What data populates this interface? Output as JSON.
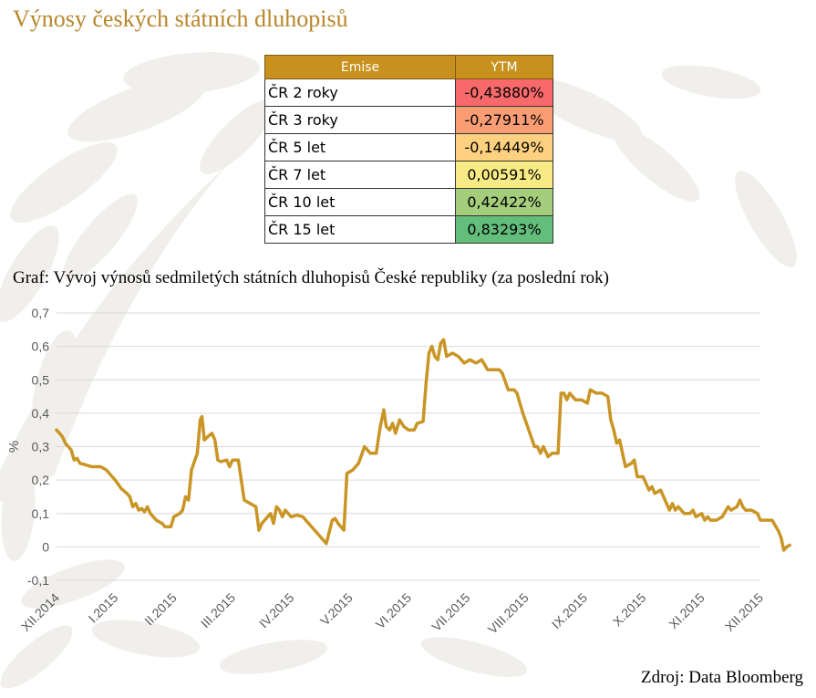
{
  "header": {
    "title": "Výnosy českých státních dluhopisů"
  },
  "table": {
    "columns": [
      "Emise",
      "YTM"
    ],
    "rows": [
      {
        "emise": "ČR 2 roky",
        "ytm": "-0,43880%",
        "color": "#f8696b"
      },
      {
        "emise": "ČR 3 roky",
        "ytm": "-0,27911%",
        "color": "#fa9d75"
      },
      {
        "emise": "ČR 5 let",
        "ytm": "-0,14449%",
        "color": "#fdd17f"
      },
      {
        "emise": "ČR 7 let",
        "ytm": "0,00591%",
        "color": "#f8eb86"
      },
      {
        "emise": "ČR 10 let",
        "ytm": "0,42422%",
        "color": "#a4cd7c"
      },
      {
        "emise": "ČR 15 let",
        "ytm": "0,83293%",
        "color": "#63be7b"
      }
    ]
  },
  "graph_caption": "Graf: Vývoj výnosů sedmiletých státních dluhopisů České republiky (za poslední rok)",
  "source": "Zdroj: Data Bloomberg",
  "chart_data": {
    "type": "line",
    "title": "",
    "xlabel": "",
    "ylabel": "%",
    "ylim": [
      -0.1,
      0.7
    ],
    "yticks": [
      "-0,1",
      "0",
      "0,1",
      "0,2",
      "0,3",
      "0,4",
      "0,5",
      "0,6",
      "0,7"
    ],
    "ytick_values": [
      -0.1,
      0,
      0.1,
      0.2,
      0.3,
      0.4,
      0.5,
      0.6,
      0.7
    ],
    "categories": [
      "XII.2014",
      "I.2015",
      "II.2015",
      "III.2015",
      "IV.2015",
      "V.2015",
      "VI.2015",
      "VII.2015",
      "VIII.2015",
      "IX.2015",
      "X.2015",
      "XI.2015",
      "XII.2015"
    ],
    "grid": true,
    "line_color": "#c99525",
    "series": [
      {
        "values": [
          [
            0.0,
            0.35
          ],
          [
            0.05,
            0.34
          ],
          [
            0.1,
            0.33
          ],
          [
            0.15,
            0.31
          ],
          [
            0.2,
            0.3
          ],
          [
            0.25,
            0.29
          ],
          [
            0.3,
            0.26
          ],
          [
            0.35,
            0.265
          ],
          [
            0.4,
            0.25
          ],
          [
            0.5,
            0.245
          ],
          [
            0.6,
            0.24
          ],
          [
            0.75,
            0.24
          ],
          [
            0.85,
            0.23
          ],
          [
            0.95,
            0.21
          ],
          [
            1.0,
            0.2
          ],
          [
            1.1,
            0.175
          ],
          [
            1.2,
            0.16
          ],
          [
            1.25,
            0.15
          ],
          [
            1.3,
            0.12
          ],
          [
            1.35,
            0.13
          ],
          [
            1.4,
            0.11
          ],
          [
            1.45,
            0.115
          ],
          [
            1.5,
            0.105
          ],
          [
            1.55,
            0.12
          ],
          [
            1.6,
            0.1
          ],
          [
            1.7,
            0.08
          ],
          [
            1.8,
            0.07
          ],
          [
            1.85,
            0.06
          ],
          [
            1.95,
            0.06
          ],
          [
            2.0,
            0.09
          ],
          [
            2.1,
            0.1
          ],
          [
            2.15,
            0.11
          ],
          [
            2.2,
            0.15
          ],
          [
            2.25,
            0.14
          ],
          [
            2.3,
            0.23
          ],
          [
            2.4,
            0.28
          ],
          [
            2.45,
            0.38
          ],
          [
            2.48,
            0.39
          ],
          [
            2.52,
            0.32
          ],
          [
            2.58,
            0.33
          ],
          [
            2.65,
            0.34
          ],
          [
            2.7,
            0.32
          ],
          [
            2.75,
            0.26
          ],
          [
            2.8,
            0.255
          ],
          [
            2.9,
            0.26
          ],
          [
            2.95,
            0.24
          ],
          [
            3.0,
            0.26
          ],
          [
            3.1,
            0.26
          ],
          [
            3.15,
            0.2
          ],
          [
            3.2,
            0.14
          ],
          [
            3.3,
            0.13
          ],
          [
            3.4,
            0.12
          ],
          [
            3.45,
            0.05
          ],
          [
            3.5,
            0.07
          ],
          [
            3.6,
            0.09
          ],
          [
            3.65,
            0.1
          ],
          [
            3.7,
            0.07
          ],
          [
            3.75,
            0.12
          ],
          [
            3.8,
            0.11
          ],
          [
            3.85,
            0.09
          ],
          [
            3.9,
            0.11
          ],
          [
            4.0,
            0.09
          ],
          [
            4.1,
            0.095
          ],
          [
            4.2,
            0.09
          ],
          [
            4.25,
            0.08
          ],
          [
            4.35,
            0.06
          ],
          [
            4.45,
            0.04
          ],
          [
            4.55,
            0.02
          ],
          [
            4.6,
            0.01
          ],
          [
            4.7,
            0.08
          ],
          [
            4.75,
            0.085
          ],
          [
            4.8,
            0.07
          ],
          [
            4.9,
            0.05
          ],
          [
            4.95,
            0.22
          ],
          [
            5.05,
            0.23
          ],
          [
            5.15,
            0.25
          ],
          [
            5.25,
            0.3
          ],
          [
            5.35,
            0.28
          ],
          [
            5.45,
            0.28
          ],
          [
            5.52,
            0.36
          ],
          [
            5.58,
            0.41
          ],
          [
            5.62,
            0.36
          ],
          [
            5.68,
            0.35
          ],
          [
            5.73,
            0.37
          ],
          [
            5.78,
            0.34
          ],
          [
            5.85,
            0.38
          ],
          [
            5.92,
            0.36
          ],
          [
            6.0,
            0.35
          ],
          [
            6.1,
            0.35
          ],
          [
            6.15,
            0.37
          ],
          [
            6.25,
            0.375
          ],
          [
            6.3,
            0.49
          ],
          [
            6.35,
            0.58
          ],
          [
            6.4,
            0.6
          ],
          [
            6.45,
            0.57
          ],
          [
            6.5,
            0.56
          ],
          [
            6.55,
            0.61
          ],
          [
            6.6,
            0.62
          ],
          [
            6.65,
            0.57
          ],
          [
            6.75,
            0.58
          ],
          [
            6.85,
            0.57
          ],
          [
            6.95,
            0.55
          ],
          [
            7.05,
            0.56
          ],
          [
            7.15,
            0.55
          ],
          [
            7.25,
            0.56
          ],
          [
            7.35,
            0.53
          ],
          [
            7.45,
            0.53
          ],
          [
            7.55,
            0.53
          ],
          [
            7.6,
            0.52
          ],
          [
            7.7,
            0.47
          ],
          [
            7.8,
            0.47
          ],
          [
            7.85,
            0.46
          ],
          [
            7.95,
            0.4
          ],
          [
            8.05,
            0.35
          ],
          [
            8.15,
            0.3
          ],
          [
            8.2,
            0.3
          ],
          [
            8.25,
            0.28
          ],
          [
            8.3,
            0.3
          ],
          [
            8.38,
            0.27
          ],
          [
            8.45,
            0.28
          ],
          [
            8.55,
            0.28
          ],
          [
            8.6,
            0.46
          ],
          [
            8.65,
            0.46
          ],
          [
            8.7,
            0.44
          ],
          [
            8.75,
            0.46
          ],
          [
            8.8,
            0.45
          ],
          [
            8.85,
            0.44
          ],
          [
            8.95,
            0.44
          ],
          [
            9.05,
            0.43
          ],
          [
            9.1,
            0.47
          ],
          [
            9.2,
            0.46
          ],
          [
            9.3,
            0.46
          ],
          [
            9.4,
            0.45
          ],
          [
            9.45,
            0.38
          ],
          [
            9.5,
            0.35
          ],
          [
            9.55,
            0.31
          ],
          [
            9.6,
            0.32
          ],
          [
            9.7,
            0.24
          ],
          [
            9.8,
            0.25
          ],
          [
            9.85,
            0.26
          ],
          [
            9.9,
            0.21
          ],
          [
            10.0,
            0.21
          ],
          [
            10.1,
            0.17
          ],
          [
            10.15,
            0.18
          ],
          [
            10.2,
            0.16
          ],
          [
            10.3,
            0.17
          ],
          [
            10.35,
            0.15
          ],
          [
            10.45,
            0.11
          ],
          [
            10.5,
            0.13
          ],
          [
            10.55,
            0.11
          ],
          [
            10.6,
            0.12
          ],
          [
            10.7,
            0.1
          ],
          [
            10.8,
            0.1
          ],
          [
            10.85,
            0.11
          ],
          [
            10.9,
            0.09
          ],
          [
            11.0,
            0.1
          ],
          [
            11.05,
            0.08
          ],
          [
            11.1,
            0.09
          ],
          [
            11.15,
            0.08
          ],
          [
            11.25,
            0.08
          ],
          [
            11.35,
            0.09
          ],
          [
            11.45,
            0.12
          ],
          [
            11.5,
            0.11
          ],
          [
            11.6,
            0.12
          ],
          [
            11.65,
            0.14
          ],
          [
            11.7,
            0.12
          ],
          [
            11.75,
            0.11
          ],
          [
            11.85,
            0.11
          ],
          [
            11.95,
            0.1
          ],
          [
            12.0,
            0.08
          ],
          [
            12.1,
            0.08
          ],
          [
            12.2,
            0.08
          ],
          [
            12.3,
            0.05
          ],
          [
            12.35,
            0.03
          ],
          [
            12.4,
            -0.01
          ],
          [
            12.45,
            0.0
          ],
          [
            12.5,
            0.005
          ]
        ]
      }
    ]
  }
}
